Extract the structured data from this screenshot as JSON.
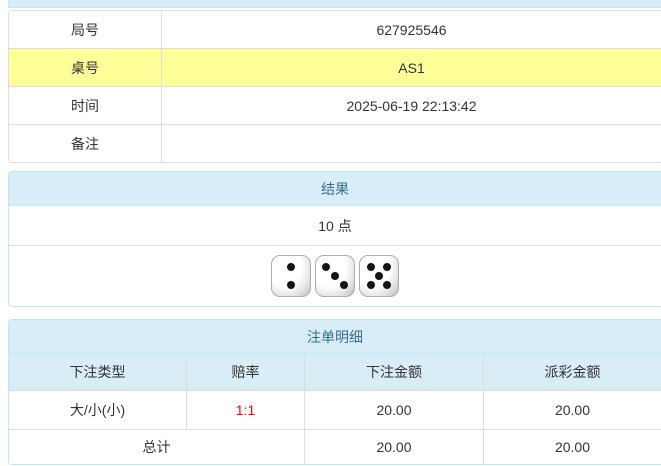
{
  "info_table": {
    "rows": [
      {
        "label": "局号",
        "value": "627925546",
        "highlight": false
      },
      {
        "label": "桌号",
        "value": "AS1",
        "highlight": true
      },
      {
        "label": "时间",
        "value": "2025-06-19 22:13:42",
        "highlight": false
      },
      {
        "label": "备注",
        "value": "",
        "highlight": false
      }
    ]
  },
  "result_panel": {
    "title": "结果",
    "points": "10 点",
    "dice": [
      2,
      3,
      5
    ]
  },
  "bets_panel": {
    "title": "注单明细",
    "columns": [
      "下注类型",
      "赔率",
      "下注金额",
      "派彩金额"
    ],
    "rows": [
      {
        "type": "大/小(小)",
        "odds": "1:1",
        "bet": "20.00",
        "payout": "20.00"
      }
    ],
    "total": {
      "label": "总计",
      "bet": "20.00",
      "payout": "20.00"
    }
  },
  "colors": {
    "panel_header_bg": "#d9edf7",
    "panel_header_text": "#31708f",
    "panel_border": "#bce8f1",
    "grid_border": "#dddddd",
    "highlight_row_bg": "#ffff99",
    "odds_text": "#ff0000",
    "body_text": "#333333"
  }
}
